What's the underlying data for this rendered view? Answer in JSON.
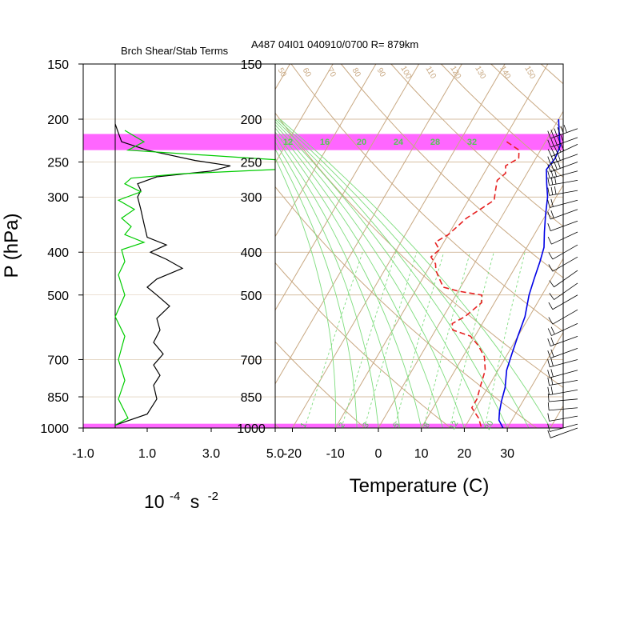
{
  "colors": {
    "skewt_iso": "#c8a882",
    "mixing": "#7ddc7d",
    "label_green": "#55c855",
    "band": "#ff00ff",
    "temp": "#0000e6",
    "dew": "#e62020",
    "shear": "#000000",
    "stab": "#00cc00"
  },
  "chart_data": [
    {
      "type": "line",
      "title": "Brch Shear/Stab Terms",
      "ylabel": "P (hPa)",
      "xlabel_base": "10",
      "xlabel_exp": "-4",
      "xlabel_unit": "s",
      "xlabel_unit_exp": "-2",
      "x_ticks": [
        "-1.0",
        "1.0",
        "3.0",
        "5.0"
      ],
      "xlim": [
        -1.0,
        5.0
      ],
      "y_scale": "log",
      "ylim": [
        1000,
        150
      ],
      "y_ticks": [
        "150",
        "200",
        "250",
        "300",
        "400",
        "500",
        "700",
        "850",
        "1000"
      ],
      "series": [
        {
          "color": "#000000",
          "points": [
            [
              0,
              205
            ],
            [
              0.1,
              215
            ],
            [
              0.2,
              225
            ],
            [
              1.0,
              235
            ],
            [
              2.5,
              248
            ],
            [
              3.6,
              255
            ],
            [
              3.0,
              262
            ],
            [
              1.3,
              270
            ],
            [
              0.7,
              280
            ],
            [
              0.8,
              290
            ],
            [
              0.7,
              300
            ],
            [
              0.8,
              320
            ],
            [
              0.9,
              345
            ],
            [
              1.0,
              370
            ],
            [
              1.6,
              385
            ],
            [
              1.1,
              400
            ],
            [
              1.6,
              415
            ],
            [
              2.1,
              435
            ],
            [
              1.3,
              460
            ],
            [
              1.0,
              480
            ],
            [
              1.3,
              500
            ],
            [
              1.7,
              530
            ],
            [
              1.3,
              565
            ],
            [
              1.4,
              600
            ],
            [
              1.2,
              640
            ],
            [
              1.5,
              680
            ],
            [
              1.2,
              720
            ],
            [
              1.4,
              760
            ],
            [
              1.2,
              800
            ],
            [
              1.3,
              860
            ],
            [
              1.0,
              930
            ],
            [
              0,
              985
            ]
          ]
        },
        {
          "color": "#00cc00",
          "points": [
            [
              0.3,
              212
            ],
            [
              0.9,
              225
            ],
            [
              0.4,
              235
            ],
            [
              5.0,
              247
            ],
            [
              5.0,
              260
            ],
            [
              2.0,
              266
            ],
            [
              0.5,
              272
            ],
            [
              0.3,
              280
            ],
            [
              0.8,
              292
            ],
            [
              0.1,
              305
            ],
            [
              0.6,
              320
            ],
            [
              0.2,
              335
            ],
            [
              0.5,
              350
            ],
            [
              0.3,
              365
            ],
            [
              0.9,
              380
            ],
            [
              0.2,
              395
            ],
            [
              0.3,
              420
            ],
            [
              0.1,
              450
            ],
            [
              0.3,
              500
            ],
            [
              0.0,
              560
            ],
            [
              0.3,
              620
            ],
            [
              0.1,
              700
            ],
            [
              0.3,
              780
            ],
            [
              0.1,
              860
            ],
            [
              0.4,
              950
            ],
            [
              0.0,
              985
            ]
          ]
        }
      ]
    },
    {
      "type": "line",
      "title": "A487 04I01 040910/0700 R= 879km",
      "xlabel": "Temperature (C)",
      "x_ticks": [
        "-20",
        "-10",
        "0",
        "10",
        "20",
        "30"
      ],
      "xlim": [
        -24,
        43
      ],
      "y_scale": "log",
      "ylim": [
        1000,
        150
      ],
      "y_ticks": [
        "150",
        "200",
        "250",
        "300",
        "400",
        "500",
        "700",
        "850",
        "1000"
      ],
      "mixing_ratio_labels_top": [
        "12",
        "16",
        "20",
        "24",
        "28",
        "32"
      ],
      "mixing_ratio_labels_bottom": [
        "1",
        "2",
        "3",
        "5",
        "8",
        "12",
        "20"
      ],
      "isotherm_labels_top": [
        "50",
        "60",
        "70",
        "80",
        "90",
        "100",
        "110",
        "120",
        "130",
        "140",
        "150"
      ],
      "series": [
        {
          "name": "",
          "color": "#0000e6",
          "style": "solid",
          "points": [
            [
              0,
              200
            ],
            [
              2,
              215
            ],
            [
              4,
              230
            ],
            [
              4.5,
              245
            ],
            [
              4,
              260
            ],
            [
              6,
              280
            ],
            [
              8,
              300
            ],
            [
              10,
              330
            ],
            [
              12,
              360
            ],
            [
              14,
              390
            ],
            [
              15,
              420
            ],
            [
              16,
              460
            ],
            [
              17,
              500
            ],
            [
              19,
              560
            ],
            [
              20,
              620
            ],
            [
              21,
              680
            ],
            [
              22,
              740
            ],
            [
              24,
              810
            ],
            [
              25,
              870
            ],
            [
              26,
              920
            ],
            [
              27,
              960
            ],
            [
              29,
              1000
            ]
          ]
        },
        {
          "name": "",
          "color": "#e62020",
          "style": "dashed",
          "points": [
            [
              -9,
              225
            ],
            [
              -5,
              235
            ],
            [
              -4,
              245
            ],
            [
              -6,
              255
            ],
            [
              -5,
              265
            ],
            [
              -6,
              275
            ],
            [
              -5,
              290
            ],
            [
              -4,
              305
            ],
            [
              -6,
              320
            ],
            [
              -8,
              335
            ],
            [
              -9,
              350
            ],
            [
              -10,
              365
            ],
            [
              -12,
              380
            ],
            [
              -10,
              395
            ],
            [
              -11,
              410
            ],
            [
              -9,
              425
            ],
            [
              -8,
              440
            ],
            [
              -6,
              460
            ],
            [
              -4,
              480
            ],
            [
              0,
              490
            ],
            [
              6,
              500
            ],
            [
              7,
              520
            ],
            [
              6,
              540
            ],
            [
              5,
              560
            ],
            [
              3,
              580
            ],
            [
              4,
              600
            ],
            [
              9,
              620
            ],
            [
              12,
              650
            ],
            [
              15,
              690
            ],
            [
              17,
              740
            ],
            [
              18,
              800
            ],
            [
              19,
              860
            ],
            [
              19,
              900
            ],
            [
              22,
              950
            ],
            [
              24,
              1000
            ]
          ]
        }
      ]
    }
  ],
  "highlight_bands": [
    {
      "p_top": 216,
      "p_bottom": 235
    },
    {
      "p_top": 978,
      "p_bottom": 1000
    }
  ],
  "wind_barbs": {
    "levels": [
      210,
      220,
      228,
      240,
      250,
      262,
      275,
      290,
      305,
      320,
      340,
      360,
      385,
      410,
      440,
      470,
      500,
      540,
      580,
      620,
      660,
      700,
      740,
      780,
      820,
      860,
      900,
      940,
      980,
      1000
    ],
    "directions_deg": [
      250,
      250,
      245,
      250,
      250,
      255,
      260,
      260,
      255,
      250,
      250,
      245,
      240,
      240,
      235,
      235,
      240,
      240,
      245,
      250,
      250,
      255,
      255,
      260,
      260,
      265,
      265,
      260,
      255,
      250
    ],
    "speeds_kt": [
      60,
      55,
      50,
      45,
      40,
      35,
      30,
      30,
      25,
      20,
      15,
      15,
      10,
      10,
      10,
      10,
      15,
      15,
      20,
      20,
      25,
      25,
      25,
      20,
      20,
      15,
      15,
      15,
      10,
      10
    ]
  }
}
